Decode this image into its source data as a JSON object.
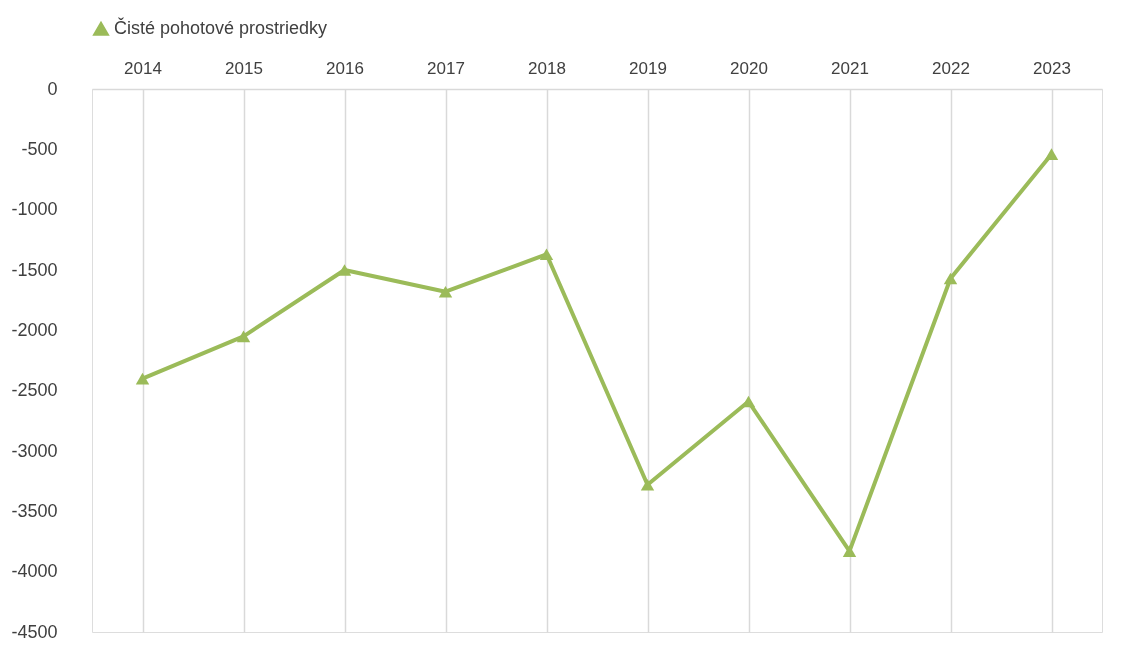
{
  "chart_data": {
    "type": "line",
    "categories": [
      "2014",
      "2015",
      "2016",
      "2017",
      "2018",
      "2019",
      "2020",
      "2021",
      "2022",
      "2023"
    ],
    "series": [
      {
        "name": "Čisté pohotové prostriedky",
        "color": "#9bbb59",
        "values": [
          -2400,
          -2050,
          -1500,
          -1680,
          -1370,
          -3280,
          -2590,
          -3830,
          -1570,
          -540
        ]
      }
    ],
    "ylim": [
      -4500,
      0
    ],
    "yticks": [
      0,
      -500,
      -1000,
      -1500,
      -2000,
      -2500,
      -3000,
      -3500,
      -4000,
      -4500
    ],
    "grid": "x",
    "legend": "top",
    "marker": "triangle",
    "line_style": "solid"
  }
}
